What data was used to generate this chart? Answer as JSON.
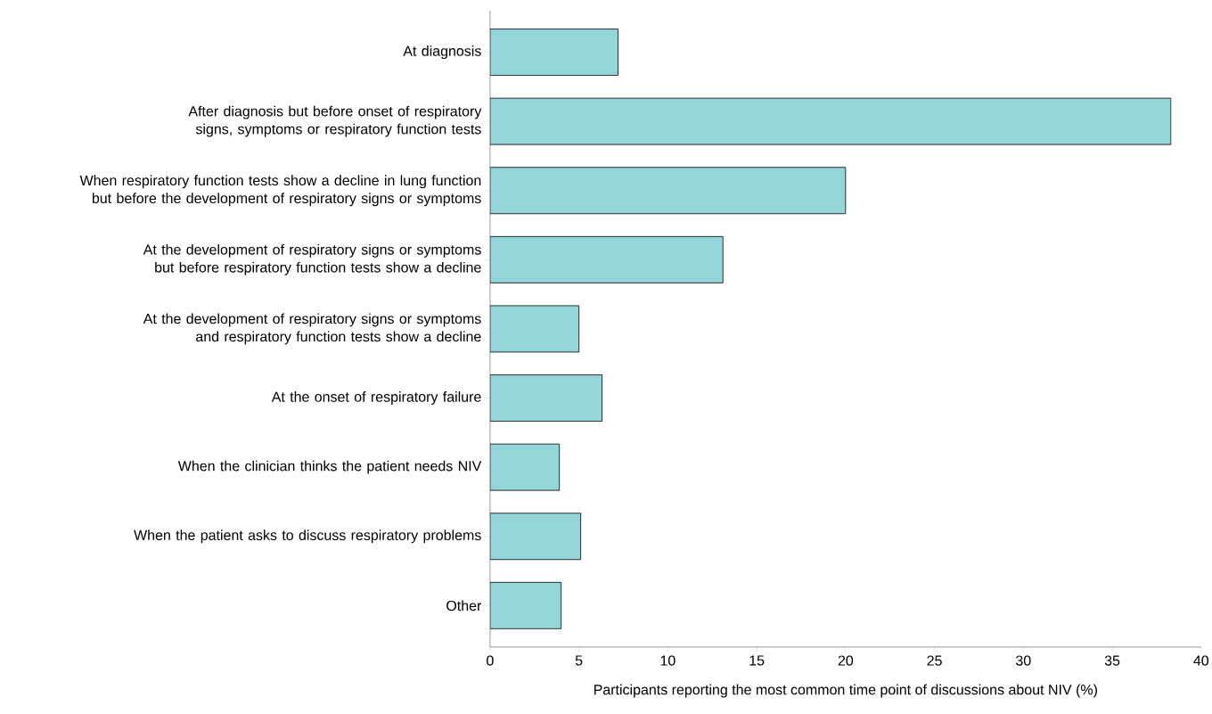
{
  "chart_data": {
    "type": "bar",
    "orientation": "horizontal",
    "categories": [
      "At diagnosis",
      "After diagnosis but before onset of respiratory signs, symptoms or respiratory function tests",
      "When respiratory function tests show a decline in lung function but before the development of respiratory signs or symptoms",
      "At the development of respiratory signs or symptoms but before respiratory function tests show a decline",
      "At the development of respiratory signs or symptoms and respiratory function tests show a decline",
      "At the onset of respiratory failure",
      "When the clinician thinks the patient needs NIV",
      "When the patient asks to discuss respiratory problems",
      "Other"
    ],
    "values": [
      7.2,
      38.3,
      20,
      13.1,
      5,
      6.3,
      3.9,
      5.1,
      4
    ],
    "color": "#93d5d8",
    "xlim": [
      0,
      40
    ],
    "xticks": [
      0,
      5,
      10,
      15,
      20,
      25,
      30,
      35,
      40
    ],
    "xlabel": "Participants reporting the most common time point of discussions about NIV (%)"
  }
}
